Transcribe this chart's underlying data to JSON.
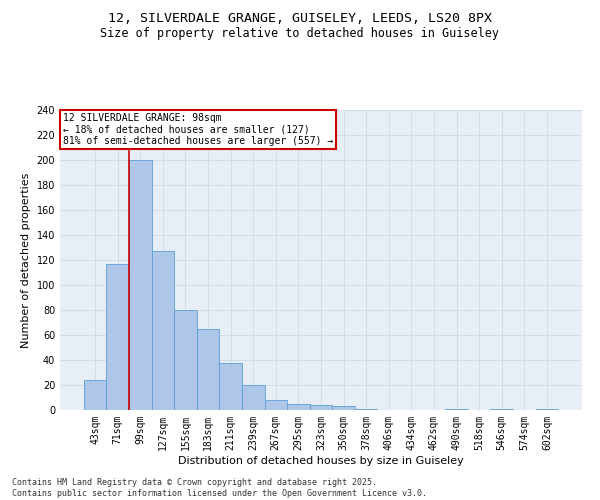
{
  "title1": "12, SILVERDALE GRANGE, GUISELEY, LEEDS, LS20 8PX",
  "title2": "Size of property relative to detached houses in Guiseley",
  "xlabel": "Distribution of detached houses by size in Guiseley",
  "ylabel": "Number of detached properties",
  "categories": [
    "43sqm",
    "71sqm",
    "99sqm",
    "127sqm",
    "155sqm",
    "183sqm",
    "211sqm",
    "239sqm",
    "267sqm",
    "295sqm",
    "323sqm",
    "350sqm",
    "378sqm",
    "406sqm",
    "434sqm",
    "462sqm",
    "490sqm",
    "518sqm",
    "546sqm",
    "574sqm",
    "602sqm"
  ],
  "values": [
    24,
    117,
    200,
    127,
    80,
    65,
    38,
    20,
    8,
    5,
    4,
    3,
    1,
    0,
    0,
    0,
    1,
    0,
    1,
    0,
    1
  ],
  "bar_color": "#aec6e8",
  "bar_edge_color": "#5a9fd4",
  "grid_color": "#d0dce8",
  "background_color": "#e8eef5",
  "vline_color": "#cc0000",
  "annotation_text": "12 SILVERDALE GRANGE: 98sqm\n← 18% of detached houses are smaller (127)\n81% of semi-detached houses are larger (557) →",
  "annotation_box_color": "#cc0000",
  "ylim": [
    0,
    240
  ],
  "yticks": [
    0,
    20,
    40,
    60,
    80,
    100,
    120,
    140,
    160,
    180,
    200,
    220,
    240
  ],
  "footer_text": "Contains HM Land Registry data © Crown copyright and database right 2025.\nContains public sector information licensed under the Open Government Licence v3.0.",
  "title_fontsize": 9.5,
  "subtitle_fontsize": 8.5,
  "tick_fontsize": 7,
  "ylabel_fontsize": 8,
  "xlabel_fontsize": 8,
  "annotation_fontsize": 7,
  "footer_fontsize": 6
}
